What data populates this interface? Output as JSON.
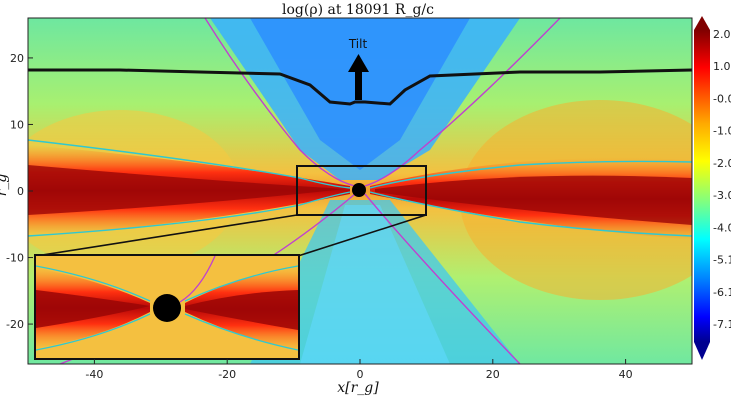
{
  "chart_data": {
    "type": "heatmap",
    "title": "log(ρ) at 18091 R_g/c",
    "xlabel": "x[r_g]",
    "ylabel": "r_g",
    "xlim": [
      -50,
      50
    ],
    "ylim": [
      -26,
      26
    ],
    "x_ticks": [
      "-40",
      "-20",
      "0",
      "20",
      "40"
    ],
    "x_tick_values": [
      -40,
      -20,
      0,
      20,
      40
    ],
    "y_ticks": [
      "20",
      "10",
      "0",
      "-10",
      "-20"
    ],
    "y_tick_values": [
      20,
      10,
      0,
      -10,
      -20
    ],
    "colorbar": {
      "colormap": "jet",
      "range": [
        -7.5,
        2.5
      ],
      "tick_labels": [
        "2.03",
        "1.03",
        "-0.0",
        "-1.0",
        "-2.0",
        "-3.0",
        "-4.0",
        "-5.1",
        "-6.1",
        "-7.1"
      ]
    },
    "annotations": {
      "tilt_label": "Tilt"
    },
    "inset": {
      "zoom_region_x": [
        -10,
        10
      ],
      "zoom_region_y": [
        -4,
        4
      ]
    },
    "black_contour_height": 17
  }
}
